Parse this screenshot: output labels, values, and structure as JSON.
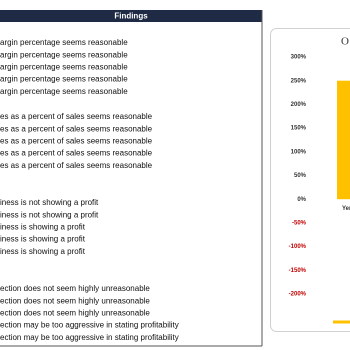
{
  "findings": {
    "title": "Findings",
    "groups": [
      [
        "argin percentage seems reasonable",
        "argin percentage seems reasonable",
        "argin percentage seems reasonable",
        "argin percentage seems reasonable",
        "argin percentage seems reasonable"
      ],
      [
        "es as a percent of sales seems reasonable",
        "es as a percent of sales seems reasonable",
        "es as a percent of sales seems reasonable",
        "es as a percent of sales seems reasonable",
        "es as a percent of sales seems reasonable"
      ],
      [
        "iness is not showing a profit",
        "iness is not showing a profit",
        "iness is showing a profit",
        "iness is showing a profit",
        "iness is showing a profit"
      ],
      [
        "ection does not seem highly unreasonable",
        "ection does not seem highly unreasonable",
        "ection does not seem highly unreasonable",
        "ection may be too aggressive in stating profitability",
        "ection may be too aggressive in stating profitability"
      ]
    ]
  },
  "chart_data": {
    "type": "bar",
    "title": "O",
    "categories": [
      "Yer"
    ],
    "values": [
      250
    ],
    "color": "#ffc000",
    "ylim": [
      -200,
      300
    ],
    "yticks": [
      {
        "value": -200,
        "label": "-200%"
      },
      {
        "value": -150,
        "label": "-150%"
      },
      {
        "value": -100,
        "label": "-100%"
      },
      {
        "value": -50,
        "label": "-50%"
      },
      {
        "value": 0,
        "label": "0%"
      },
      {
        "value": 50,
        "label": "50%"
      },
      {
        "value": 100,
        "label": "100%"
      },
      {
        "value": 150,
        "label": "150%"
      },
      {
        "value": 200,
        "label": "200%"
      },
      {
        "value": 250,
        "label": "250%"
      },
      {
        "value": 300,
        "label": "300%"
      }
    ]
  }
}
